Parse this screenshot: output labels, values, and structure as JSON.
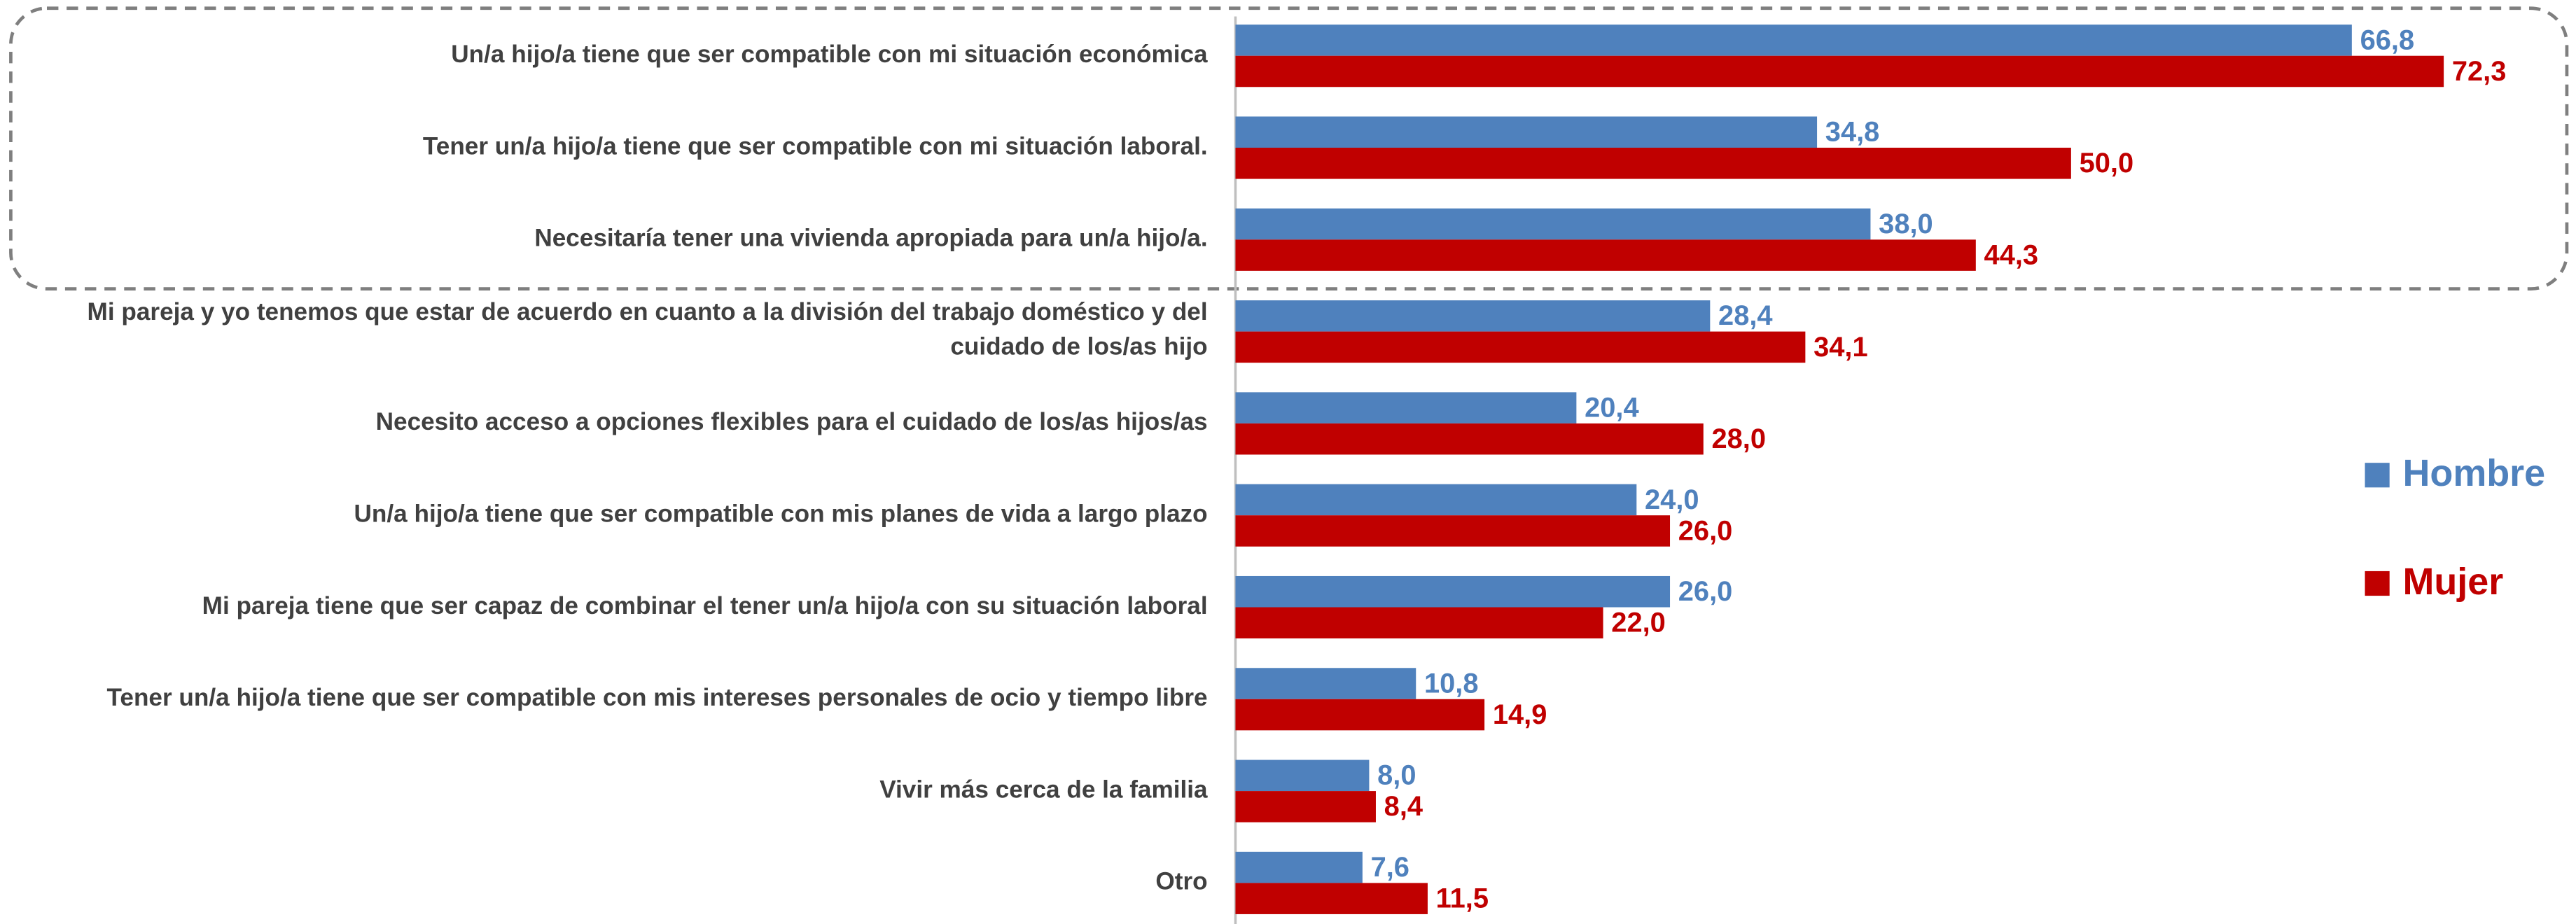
{
  "chart_data": {
    "type": "hbar",
    "categories": [
      "Un/a hijo/a tiene que ser compatible con mi situación económica",
      "Tener un/a hijo/a tiene que ser compatible con mi situación laboral.",
      "Necesitaría tener una vivienda apropiada para un/a hijo/a.",
      [
        "Mi pareja y yo tenemos que estar de acuerdo en cuanto a la división del trabajo doméstico y del",
        "cuidado de los/as hijo"
      ],
      "Necesito acceso a opciones flexibles para el cuidado de los/as hijos/as",
      "Un/a hijo/a tiene que ser compatible con mis planes de vida a largo plazo",
      "Mi pareja tiene que ser capaz de combinar el tener un/a hijo/a con su situación laboral",
      "Tener un/a hijo/a tiene que ser compatible con mis intereses personales de ocio y tiempo libre",
      "Vivir más cerca de la familia",
      "Otro"
    ],
    "series": [
      {
        "name": "Hombre",
        "color": "#4f81bd",
        "values": [
          66.8,
          34.8,
          38.0,
          28.4,
          20.4,
          24.0,
          26.0,
          10.8,
          8.0,
          7.6
        ],
        "value_labels": [
          "66,8",
          "34,8",
          "38,0",
          "28,4",
          "20,4",
          "24,0",
          "26,0",
          "10,8",
          "8,0",
          "7,6"
        ]
      },
      {
        "name": "Mujer",
        "color": "#c00000",
        "values": [
          72.3,
          50.0,
          44.3,
          34.1,
          28.0,
          26.0,
          22.0,
          14.9,
          8.4,
          11.5
        ],
        "value_labels": [
          "72,3",
          "50,0",
          "44,3",
          "34,1",
          "28,0",
          "26,0",
          "22,0",
          "14,9",
          "8,4",
          "11,5"
        ]
      }
    ],
    "legend": "right"
  }
}
